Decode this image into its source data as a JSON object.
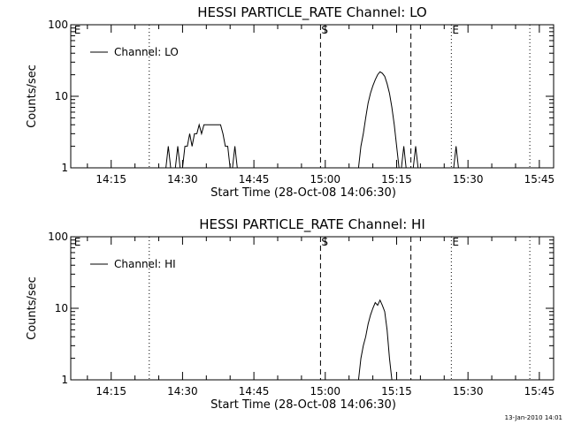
{
  "chart_data": [
    {
      "type": "line",
      "title": "HESSI PARTICLE_RATE Channel: LO",
      "xlabel": "Start Time (28-Oct-08 14:06:30)",
      "ylabel": "Counts/sec",
      "y_scale": "log",
      "ylim": [
        1,
        100
      ],
      "y_ticks": [
        {
          "value": 1,
          "label": "1"
        },
        {
          "value": 10,
          "label": "10"
        },
        {
          "value": 100,
          "label": "100"
        }
      ],
      "xlim": [
        "14:06:30",
        "15:48:00"
      ],
      "x_ticks": [
        "14:15",
        "14:30",
        "14:45",
        "15:00",
        "15:15",
        "15:30",
        "15:45"
      ],
      "legend": {
        "position": "top-left",
        "entries": [
          "Channel: LO"
        ]
      },
      "markers": [
        {
          "time": "14:07:00",
          "label": "E",
          "style": "none"
        },
        {
          "time": "14:23:00",
          "label": "",
          "style": "dotted"
        },
        {
          "time": "14:59:00",
          "label": "S",
          "style": "dashed"
        },
        {
          "time": "15:18:00",
          "label": "",
          "style": "dashed"
        },
        {
          "time": "15:26:30",
          "label": "E",
          "style": "dotted"
        },
        {
          "time": "15:43:00",
          "label": "",
          "style": "dotted"
        }
      ],
      "series": [
        {
          "name": "Channel: LO",
          "segments": [
            [
              [
                "14:26:30",
                1
              ],
              [
                "14:27:00",
                2
              ],
              [
                "14:27:30",
                1
              ]
            ],
            [
              [
                "14:28:30",
                1
              ],
              [
                "14:29:00",
                2
              ],
              [
                "14:29:30",
                1
              ]
            ],
            [
              [
                "14:30:00",
                1
              ],
              [
                "14:30:30",
                2
              ],
              [
                "14:31:00",
                2
              ],
              [
                "14:31:30",
                3
              ],
              [
                "14:32:00",
                2
              ],
              [
                "14:32:30",
                3
              ],
              [
                "14:33:00",
                3
              ],
              [
                "14:33:30",
                4
              ],
              [
                "14:34:00",
                3
              ],
              [
                "14:34:30",
                4
              ],
              [
                "14:35:00",
                4
              ],
              [
                "14:36:00",
                4
              ],
              [
                "14:37:00",
                4
              ],
              [
                "14:38:00",
                4
              ],
              [
                "14:38:30",
                3
              ],
              [
                "14:39:00",
                2
              ],
              [
                "14:39:30",
                2
              ],
              [
                "14:40:00",
                1
              ]
            ],
            [
              [
                "14:40:30",
                1
              ],
              [
                "14:41:00",
                2
              ],
              [
                "14:41:30",
                1
              ]
            ],
            [
              [
                "15:07:00",
                1
              ],
              [
                "15:07:30",
                2
              ],
              [
                "15:08:00",
                3
              ],
              [
                "15:08:30",
                5
              ],
              [
                "15:09:00",
                8
              ],
              [
                "15:09:30",
                11
              ],
              [
                "15:10:00",
                14
              ],
              [
                "15:10:30",
                17
              ],
              [
                "15:11:00",
                20
              ],
              [
                "15:11:30",
                22
              ],
              [
                "15:12:00",
                21
              ],
              [
                "15:12:30",
                19
              ],
              [
                "15:13:00",
                15
              ],
              [
                "15:13:30",
                11
              ],
              [
                "15:14:00",
                7
              ],
              [
                "15:14:30",
                4
              ],
              [
                "15:15:00",
                2
              ],
              [
                "15:15:30",
                1
              ]
            ],
            [
              [
                "15:16:00",
                1
              ],
              [
                "15:16:30",
                2
              ],
              [
                "15:17:00",
                1
              ]
            ],
            [
              [
                "15:18:30",
                1
              ],
              [
                "15:19:00",
                2
              ],
              [
                "15:19:30",
                1
              ]
            ],
            [
              [
                "15:27:00",
                1
              ],
              [
                "15:27:30",
                2
              ],
              [
                "15:28:00",
                1
              ]
            ]
          ]
        }
      ]
    },
    {
      "type": "line",
      "title": "HESSI PARTICLE_RATE Channel: HI",
      "xlabel": "Start Time (28-Oct-08 14:06:30)",
      "ylabel": "Counts/sec",
      "y_scale": "log",
      "ylim": [
        1,
        100
      ],
      "y_ticks": [
        {
          "value": 1,
          "label": "1"
        },
        {
          "value": 10,
          "label": "10"
        },
        {
          "value": 100,
          "label": "100"
        }
      ],
      "xlim": [
        "14:06:30",
        "15:48:00"
      ],
      "x_ticks": [
        "14:15",
        "14:30",
        "14:45",
        "15:00",
        "15:15",
        "15:30",
        "15:45"
      ],
      "legend": {
        "position": "top-left",
        "entries": [
          "Channel: HI"
        ]
      },
      "markers": [
        {
          "time": "14:07:00",
          "label": "E",
          "style": "none"
        },
        {
          "time": "14:23:00",
          "label": "",
          "style": "dotted"
        },
        {
          "time": "14:59:00",
          "label": "S",
          "style": "dashed"
        },
        {
          "time": "15:18:00",
          "label": "",
          "style": "dashed"
        },
        {
          "time": "15:26:30",
          "label": "E",
          "style": "dotted"
        },
        {
          "time": "15:43:00",
          "label": "",
          "style": "dotted"
        }
      ],
      "series": [
        {
          "name": "Channel: HI",
          "segments": [
            [
              [
                "15:07:00",
                1
              ],
              [
                "15:07:30",
                2
              ],
              [
                "15:08:00",
                3
              ],
              [
                "15:08:30",
                4
              ],
              [
                "15:09:00",
                6
              ],
              [
                "15:09:30",
                8
              ],
              [
                "15:10:00",
                10
              ],
              [
                "15:10:30",
                12
              ],
              [
                "15:11:00",
                11
              ],
              [
                "15:11:30",
                13
              ],
              [
                "15:12:00",
                11
              ],
              [
                "15:12:30",
                9
              ],
              [
                "15:13:00",
                5
              ],
              [
                "15:13:30",
                2
              ],
              [
                "15:14:00",
                1
              ]
            ]
          ]
        }
      ]
    }
  ],
  "footer": {
    "stamp": "13-Jan-2010 14:01"
  }
}
